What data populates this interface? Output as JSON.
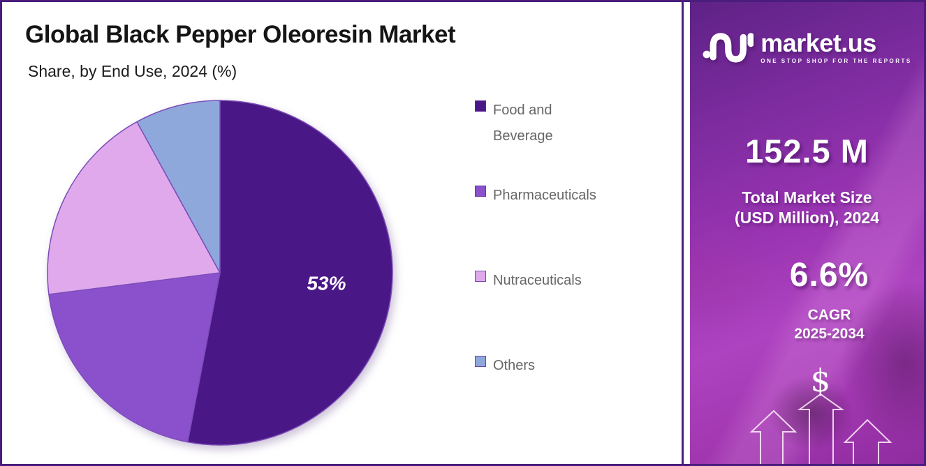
{
  "header": {
    "title": "Global Black Pepper Oleoresin Market",
    "subtitle": "Share, by End Use, 2024 (%)"
  },
  "chart_data": {
    "type": "pie",
    "title": "Global Black Pepper Oleoresin Market",
    "subtitle": "Share, by End Use, 2024 (%)",
    "unit": "%",
    "categories": [
      "Food and Beverage",
      "Pharmaceuticals",
      "Nutraceuticals",
      "Others"
    ],
    "values": [
      53,
      20,
      19,
      8
    ],
    "displayed_labels": [
      "53%",
      "",
      "",
      ""
    ],
    "colors": [
      "#4a1787",
      "#8b51cc",
      "#dfa9ec",
      "#8fa8dc"
    ],
    "slice_border_color": "#7c4db8",
    "start_angle_deg": 0,
    "direction": "clockwise",
    "legend_position": "right"
  },
  "brand_panel": {
    "logo_text": "market.us",
    "logo_tagline": "ONE STOP SHOP FOR THE REPORTS",
    "market_size_value": "152.5 M",
    "market_size_label_line1": "Total Market Size",
    "market_size_label_line2": "(USD Million), 2024",
    "cagr_value": "6.6%",
    "cagr_label_line1": "CAGR",
    "cagr_label_line2": "2025-2034",
    "dollar_symbol": "$",
    "colors": {
      "panel_dark": "#5e2286",
      "panel_bright": "#ae43c0",
      "frame_border": "#4a1d7c",
      "text": "#ffffff"
    }
  }
}
